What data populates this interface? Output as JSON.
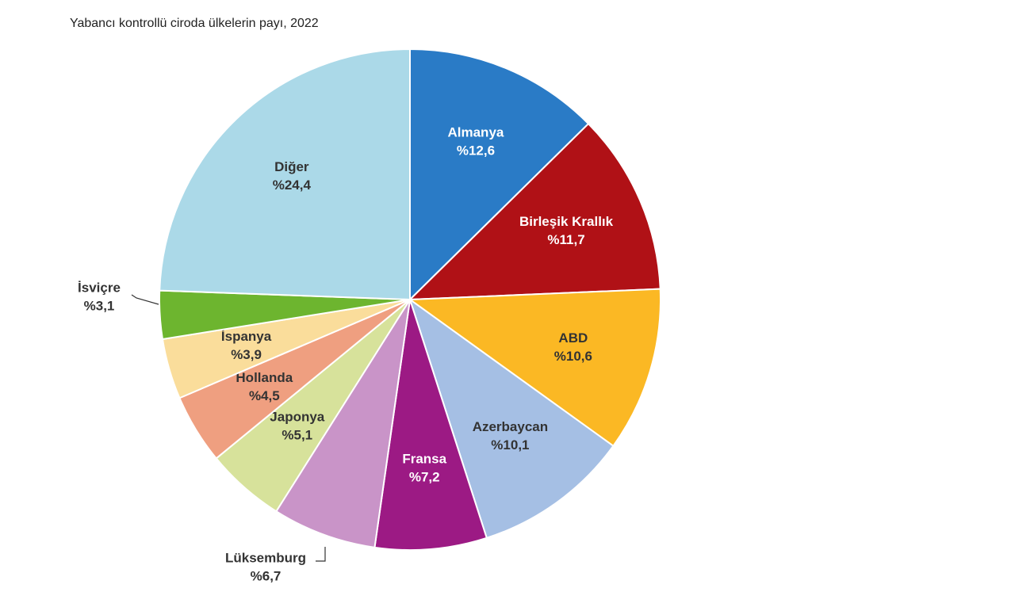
{
  "chart_data": {
    "type": "pie",
    "title": "Yabancı kontrollü ciroda ülkelerin payı, 2022",
    "categories": [
      "Almanya",
      "Birleşik Krallık",
      "ABD",
      "Azerbaycan",
      "Fransa",
      "Lüksemburg",
      "Japonya",
      "Hollanda",
      "İspanya",
      "İsviçre",
      "Diğer"
    ],
    "values": [
      12.6,
      11.7,
      10.6,
      10.1,
      7.2,
      6.7,
      5.1,
      4.5,
      3.9,
      3.1,
      24.4
    ],
    "value_labels": [
      "%12,6",
      "%11,7",
      "%10,6",
      "%10,1",
      "%7,2",
      "%6,7",
      "%5,1",
      "%4,5",
      "%3,9",
      "%3,1",
      "%24,4"
    ],
    "colors": [
      "#2a7bc6",
      "#b01116",
      "#fbb824",
      "#a5bfe4",
      "#9c1a84",
      "#c994c8",
      "#d7e29b",
      "#ef9f80",
      "#fadd9b",
      "#6db52f",
      "#abd9e8"
    ]
  }
}
